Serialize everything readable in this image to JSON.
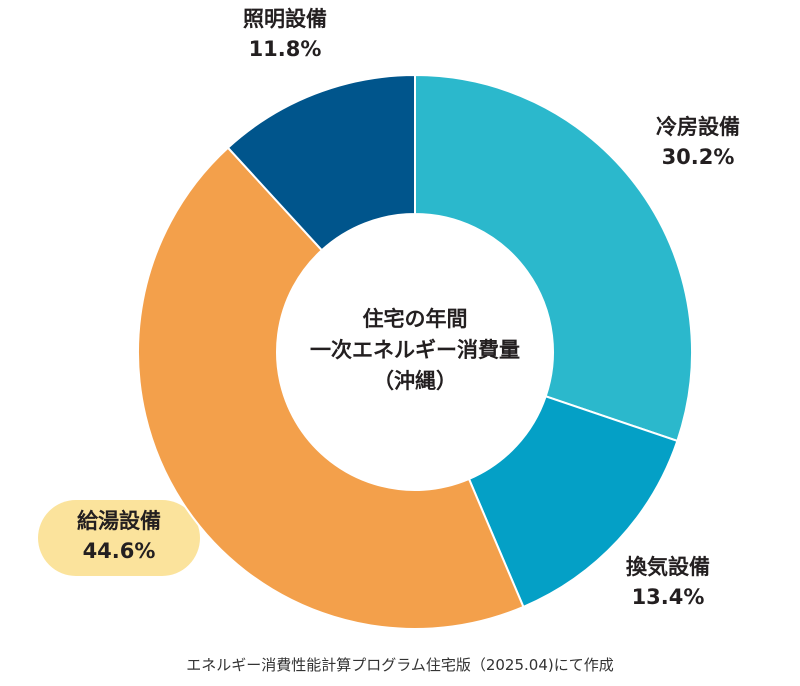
{
  "chart_data": {
    "type": "pie",
    "donut": true,
    "center_title_lines": [
      "住宅の年間",
      "一次エネルギー消費量",
      "（沖縄）"
    ],
    "slices": [
      {
        "name": "冷房設備",
        "value": 30.2,
        "label": "30.2%",
        "color": "#2bb8cc"
      },
      {
        "name": "換気設備",
        "value": 13.4,
        "label": "13.4%",
        "color": "#04a0c6"
      },
      {
        "name": "給湯設備",
        "value": 44.6,
        "label": "44.6%",
        "color": "#f3a04b",
        "highlighted": true
      },
      {
        "name": "照明設備",
        "value": 11.8,
        "label": "11.8%",
        "color": "#00558c"
      }
    ],
    "start_angle_deg": 0,
    "direction": "clockwise",
    "highlight_color": "#fbe39c"
  },
  "footer": {
    "source": "エネルギー消費性能計算プログラム住宅版（2025.04)にて作成"
  }
}
